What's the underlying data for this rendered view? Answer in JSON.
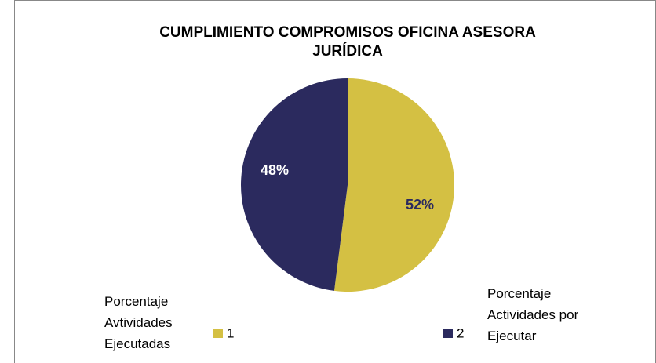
{
  "chart_data": {
    "type": "pie",
    "title": "CUMPLIMIENTO COMPROMISOS OFICINA ASESORA JURÍDICA",
    "categories": [
      "1",
      "2"
    ],
    "values": [
      52,
      48
    ],
    "value_labels": [
      "52%",
      "48%"
    ],
    "colors": [
      "#d4c043",
      "#2b2a5e"
    ],
    "annotations": [
      "Porcentaje Avtividades Ejecutadas",
      "Porcentaje Actividades por Ejecutar"
    ],
    "legend": "bottom"
  }
}
